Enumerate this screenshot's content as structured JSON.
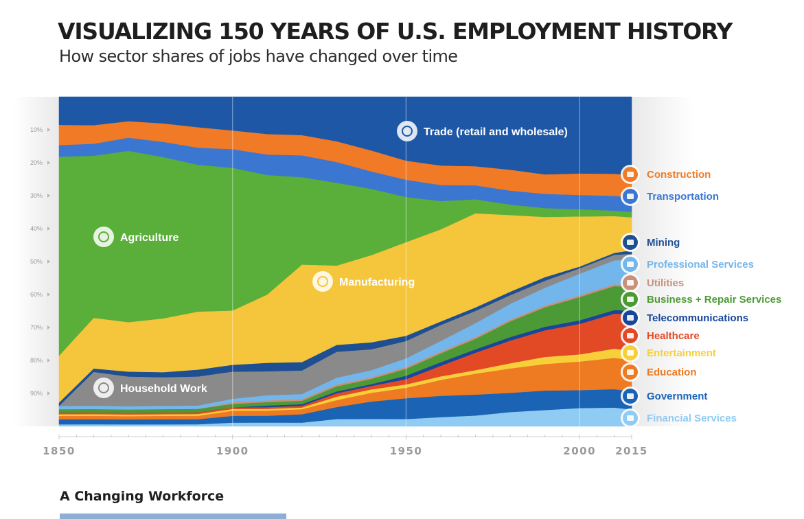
{
  "title": "VISUALIZING 150 YEARS OF U.S. EMPLOYMENT HISTORY",
  "subtitle": "How sector shares of jobs have changed over time",
  "footer": {
    "heading": "A Changing Workforce"
  },
  "chart_data": {
    "type": "area",
    "stacked": true,
    "percent": true,
    "x": [
      1850,
      1860,
      1870,
      1880,
      1890,
      1900,
      1910,
      1920,
      1930,
      1940,
      1950,
      1960,
      1970,
      1980,
      1990,
      2000,
      2010,
      2015
    ],
    "x_ticks": [
      "1850",
      "1900",
      "1950",
      "2000",
      "2015"
    ],
    "y_ticks": [
      "10%",
      "20%",
      "30%",
      "40%",
      "50%",
      "60%",
      "70%",
      "80%",
      "90%"
    ],
    "ylim": [
      0,
      100
    ],
    "y_inverted": true,
    "grid": "vertical lines at 1900, 1950, 2000",
    "legend": "right",
    "series": [
      {
        "name": "Trade (retail and wholesale)",
        "color": "#1d57a6",
        "icon": "cart-icon",
        "values": [
          8.5,
          8.5,
          7.5,
          8,
          9,
          10,
          11,
          11.5,
          13,
          15.5,
          18.5,
          19.5,
          20,
          21,
          22,
          21.5,
          21,
          21.5
        ]
      },
      {
        "name": "Construction",
        "color": "#f07a26",
        "icon": "crane-icon",
        "values": [
          6,
          5.5,
          5,
          5.5,
          6,
          5.5,
          6,
          6,
          6,
          6,
          5.5,
          5.5,
          5.5,
          6,
          5.5,
          6,
          6,
          6
        ]
      },
      {
        "name": "Transportation",
        "color": "#3b76d1",
        "icon": "truck-icon",
        "values": [
          3.5,
          3.5,
          4,
          4.5,
          5,
          5.5,
          6,
          6.5,
          6,
          5,
          5,
          4.5,
          4,
          4,
          4,
          4,
          4,
          4
        ]
      },
      {
        "name": "Agriculture",
        "color": "#5aae3a",
        "icon": "wheat-icon",
        "values": [
          59.5,
          48,
          52,
          48,
          43,
          42,
          35,
          26,
          24,
          19,
          13,
          8,
          4,
          3,
          2.5,
          2,
          1.5,
          1.5
        ]
      },
      {
        "name": "Manufacturing",
        "color": "#f5c53b",
        "icon": "factory-icon",
        "values": [
          14,
          15,
          15,
          16,
          17,
          16,
          20,
          29,
          23,
          25,
          27,
          26,
          27,
          22,
          17,
          14,
          10,
          9
        ]
      },
      {
        "name": "Mining",
        "color": "#1f4f93",
        "icon": "pickaxe-icon",
        "values": [
          1,
          1,
          1.5,
          1.5,
          2,
          2,
          2.5,
          2.5,
          2,
          2,
          1.5,
          1,
          1,
          1,
          1,
          0.5,
          0.5,
          1
        ]
      },
      {
        "name": "Household Work",
        "color": "#8a8a8a",
        "icon": "house-icon",
        "values": [
          0,
          10,
          9,
          8.5,
          8.5,
          8,
          7,
          7,
          7.5,
          6,
          5,
          4.5,
          3.5,
          2.5,
          2,
          1.5,
          1.5,
          1.5
        ]
      },
      {
        "name": "Professional Services",
        "color": "#73b6ec",
        "icon": "cube-icon",
        "values": [
          1,
          1,
          1,
          1,
          1,
          1,
          1.5,
          1.5,
          2,
          2,
          2.5,
          3,
          4,
          4.5,
          5,
          6,
          6.5,
          7
        ]
      },
      {
        "name": "Utilities",
        "color": "#c9907a",
        "icon": "faucet-icon",
        "values": [
          0,
          0,
          0,
          0,
          0,
          0.5,
          0.5,
          0.5,
          0.5,
          0.5,
          0.5,
          0.5,
          0.5,
          0.5,
          0.5,
          0.5,
          0.5,
          0.5
        ]
      },
      {
        "name": "Business + Repair Services",
        "color": "#4c9a35",
        "icon": "tools-icon",
        "values": [
          1,
          1,
          1,
          1,
          1,
          1,
          1,
          1,
          1.5,
          1.5,
          2,
          2.5,
          3,
          4.5,
          5.5,
          6.5,
          6.5,
          6.5
        ]
      },
      {
        "name": "Telecommunications",
        "color": "#17469a",
        "icon": "satellite-icon",
        "values": [
          0,
          0,
          0,
          0,
          0,
          0,
          0.5,
          0.5,
          0.5,
          0.5,
          1,
          1,
          1,
          1,
          1,
          1,
          1,
          1
        ]
      },
      {
        "name": "Healthcare",
        "color": "#e24a26",
        "icon": "cross-icon",
        "values": [
          0.5,
          0.5,
          0.5,
          0.5,
          0.5,
          0.5,
          0.5,
          0.5,
          1,
          1,
          1.5,
          3,
          5,
          6.5,
          7.5,
          8.5,
          9.5,
          10
        ]
      },
      {
        "name": "Entertainment",
        "color": "#f7cf3a",
        "icon": "ticket-icon",
        "values": [
          0.5,
          0.5,
          0.5,
          0.5,
          0.5,
          0.5,
          0.5,
          0.5,
          1,
          1,
          1,
          1,
          1,
          1.5,
          2,
          2,
          2.5,
          2.5
        ]
      },
      {
        "name": "Education",
        "color": "#ee7a22",
        "icon": "graduation-cap-icon",
        "values": [
          1,
          1,
          1,
          1,
          1,
          1.5,
          1.5,
          1.5,
          2,
          2.5,
          3,
          4.5,
          6,
          7,
          7.5,
          8,
          8.5,
          8.5
        ]
      },
      {
        "name": "Government",
        "color": "#1a63b5",
        "icon": "government-icon",
        "values": [
          1.5,
          1.5,
          1.5,
          1.5,
          1.5,
          2,
          2,
          2.5,
          3.5,
          5,
          6,
          6,
          6,
          5.5,
          5.5,
          5,
          5,
          5
        ]
      },
      {
        "name": "Financial Services",
        "color": "#8fcbf2",
        "icon": "money-bag-icon",
        "values": [
          0.5,
          0.5,
          0.5,
          0.5,
          0.5,
          1,
          1,
          1,
          2,
          2,
          2,
          2.5,
          3,
          4,
          4.5,
          5,
          5,
          4.5
        ]
      }
    ],
    "in_chart_labels": [
      "Trade (retail and wholesale)",
      "Agriculture",
      "Manufacturing",
      "Household Work"
    ]
  }
}
